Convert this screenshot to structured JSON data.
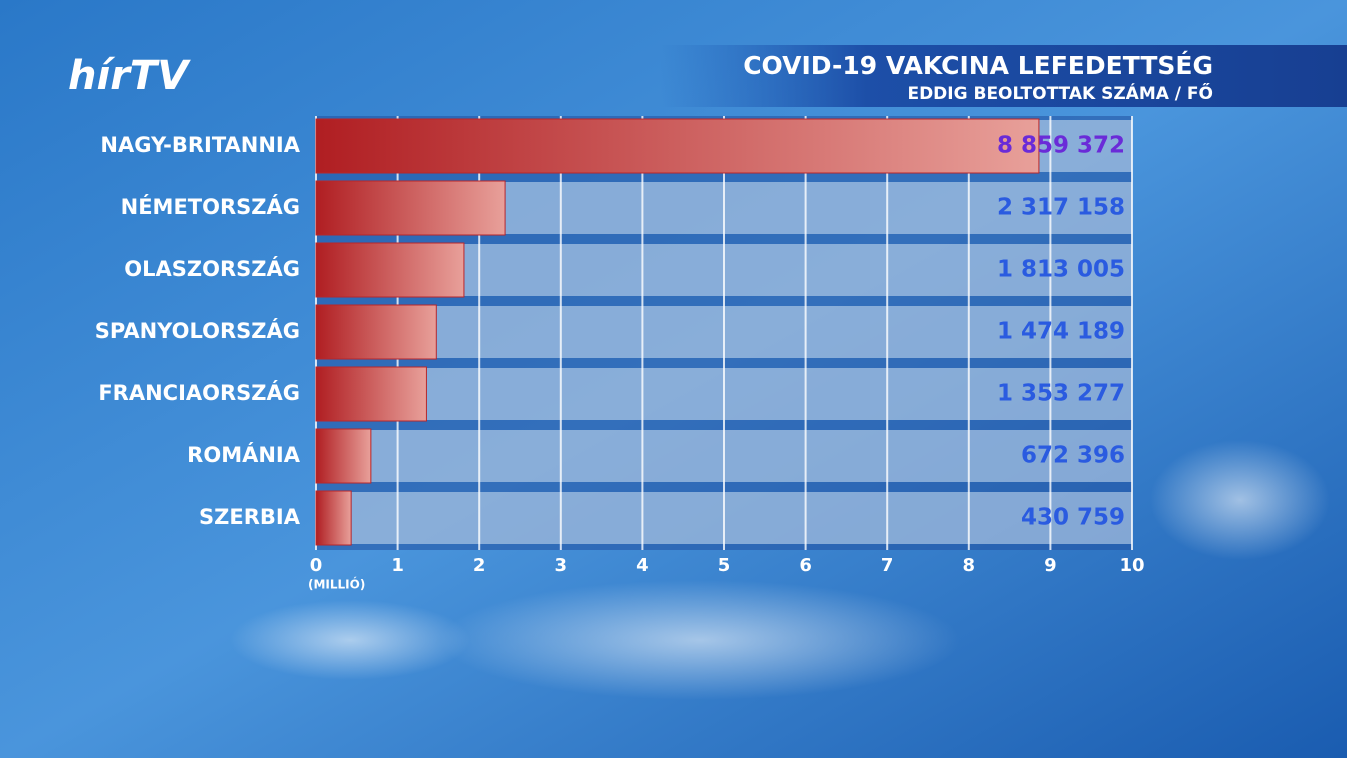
{
  "logo": "hírTV",
  "chart_data": {
    "type": "bar",
    "orientation": "horizontal",
    "title": "COVID-19 VAKCINA LEFEDETTSÉG",
    "subtitle": "EDDIG BEOLTOTTAK SZÁMA / FŐ",
    "x_label": "(MILLIÓ)",
    "categories": [
      "NAGY-BRITANNIA",
      "NÉMETORSZÁG",
      "OLASZORSZÁG",
      "SPANYOLORSZÁG",
      "FRANCIAORSZÁG",
      "ROMÁNIA",
      "SZERBIA"
    ],
    "values": [
      8.859372,
      2.317158,
      1.813005,
      1.474189,
      1.353277,
      0.672396,
      0.430759
    ],
    "value_labels": [
      "8 859 372",
      "2 317 158",
      "1 813 005",
      "1 474 189",
      "1 353 277",
      "672 396",
      "430 759"
    ],
    "color": "#b8262a",
    "xlim": [
      0,
      10
    ],
    "xticks": [
      0,
      1,
      2,
      3,
      4,
      5,
      6,
      7,
      8,
      9,
      10
    ],
    "grid": true
  }
}
